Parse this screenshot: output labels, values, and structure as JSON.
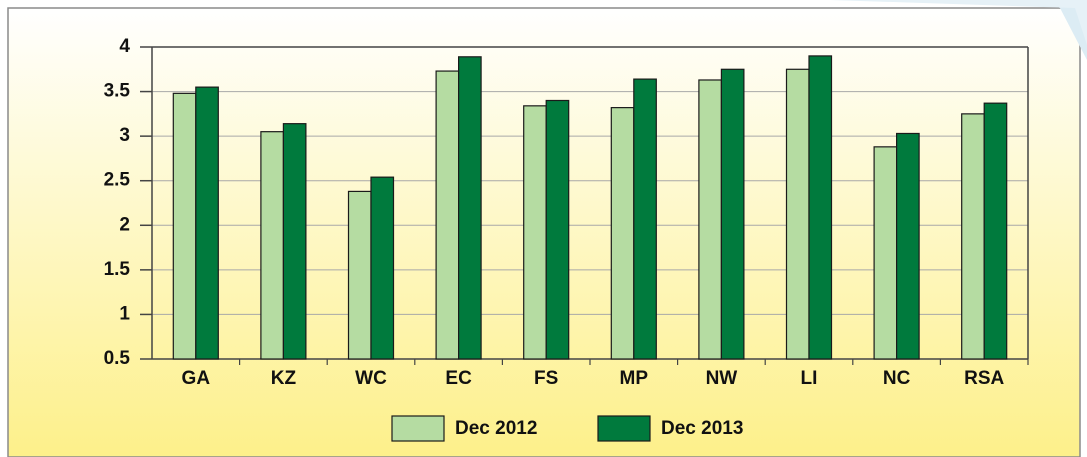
{
  "chart_data": {
    "type": "bar",
    "categories": [
      "GA",
      "KZ",
      "WC",
      "EC",
      "FS",
      "MP",
      "NW",
      "LI",
      "NC",
      "RSA"
    ],
    "series": [
      {
        "name": "Dec 2012",
        "color": "#b5dca2",
        "values": [
          3.48,
          3.05,
          2.38,
          3.73,
          3.34,
          3.32,
          3.63,
          3.75,
          2.88,
          3.25
        ]
      },
      {
        "name": "Dec 2013",
        "color": "#007a3d",
        "values": [
          3.55,
          3.14,
          2.54,
          3.89,
          3.4,
          3.64,
          3.75,
          3.9,
          3.03,
          3.37
        ]
      }
    ],
    "ylim": [
      0.5,
      4
    ],
    "yticks": [
      0.5,
      1,
      1.5,
      2,
      2.5,
      3,
      3.5,
      4
    ],
    "grid": true,
    "legend": "bottom"
  }
}
